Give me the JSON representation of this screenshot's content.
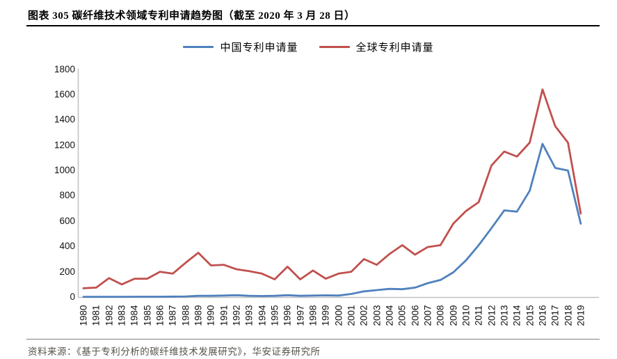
{
  "title": "图表 305 碳纤维技术领域专利申请趋势图（截至 2020 年 3 月 28 日）",
  "source_note": "资料来源：《基于专利分析的碳纤维技术发展研究》，华安证券研究所",
  "colors": {
    "china_series": "#4F81BD",
    "global_series": "#C0504D",
    "axis_line": "#BFBFBF",
    "title_rule": "#000000",
    "source_rule": "#7F7F7F",
    "source_text": "#55524A"
  },
  "chart_data": {
    "type": "line",
    "title": "图表 305 碳纤维技术领域专利申请趋势图（截至 2020 年 3 月 28 日）",
    "xlabel": "",
    "ylabel": "",
    "x": [
      1980,
      1981,
      1982,
      1983,
      1984,
      1985,
      1986,
      1987,
      1988,
      1989,
      1990,
      1991,
      1992,
      1993,
      1994,
      1995,
      1996,
      1997,
      1998,
      1999,
      2000,
      2001,
      2002,
      2003,
      2004,
      2005,
      2006,
      2007,
      2008,
      2009,
      2010,
      2011,
      2012,
      2013,
      2014,
      2015,
      2016,
      2017,
      2018,
      2019
    ],
    "series": [
      {
        "name": "中国专利申请量",
        "color": "#4F81BD",
        "values": [
          2,
          2,
          2,
          2,
          3,
          3,
          3,
          4,
          5,
          10,
          10,
          12,
          15,
          10,
          8,
          10,
          15,
          10,
          12,
          14,
          12,
          25,
          45,
          55,
          65,
          62,
          75,
          110,
          135,
          195,
          290,
          410,
          545,
          685,
          675,
          840,
          1210,
          1020,
          1000,
          580
        ]
      },
      {
        "name": "全球专利申请量",
        "color": "#C0504D",
        "values": [
          70,
          75,
          150,
          100,
          145,
          145,
          200,
          185,
          270,
          350,
          250,
          255,
          220,
          205,
          185,
          140,
          240,
          140,
          210,
          145,
          185,
          200,
          300,
          255,
          340,
          410,
          335,
          395,
          410,
          580,
          680,
          750,
          1040,
          1150,
          1110,
          1220,
          1640,
          1350,
          1220,
          660
        ]
      }
    ],
    "ylim": [
      0,
      1800
    ],
    "ytick_step": 200,
    "grid": false,
    "legend_position": "top-center",
    "x_tick_rotation": -90
  }
}
